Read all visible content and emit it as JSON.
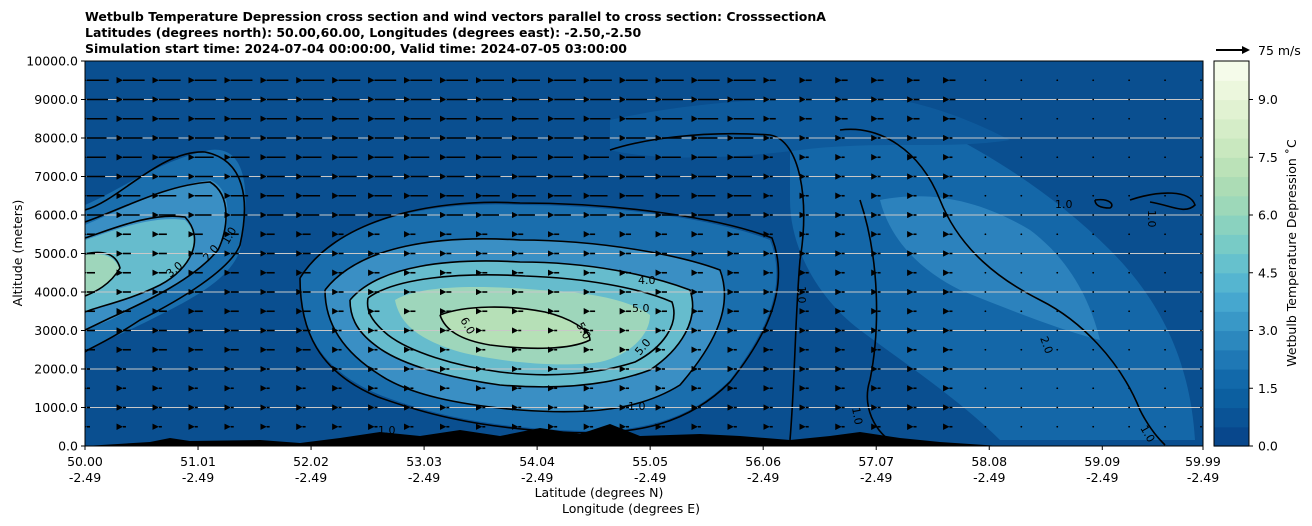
{
  "chart_data": {
    "type": "contour",
    "title_lines": [
      "Wetbulb Temperature Depression cross section and wind vectors parallel to cross section: CrosssectionA",
      "Latitudes (degrees north): 50.00,60.00, Longitudes (degrees east): -2.50,-2.50",
      "Simulation start time: 2024-07-04 00:00:00, Valid time: 2024-07-05 03:00:00"
    ],
    "ylabel": "Altitude (meters)",
    "xlabel_line1": "Latitude (degrees N)",
    "xlabel_line2": "Longitude (degrees E)",
    "ylim": [
      0,
      10000
    ],
    "y_ticks": [
      "0.0",
      "1000.0",
      "2000.0",
      "3000.0",
      "4000.0",
      "5000.0",
      "6000.0",
      "7000.0",
      "8000.0",
      "9000.0",
      "10000.0"
    ],
    "y_tick_values": [
      0,
      1000,
      2000,
      3000,
      4000,
      5000,
      6000,
      7000,
      8000,
      9000,
      10000
    ],
    "xlim": [
      50.0,
      59.99
    ],
    "x_ticks": [
      {
        "lat": "50.00",
        "lon": "-2.49",
        "value": 50.0
      },
      {
        "lat": "51.01",
        "lon": "-2.49",
        "value": 51.01
      },
      {
        "lat": "52.02",
        "lon": "-2.49",
        "value": 52.02
      },
      {
        "lat": "53.03",
        "lon": "-2.49",
        "value": 53.03
      },
      {
        "lat": "54.04",
        "lon": "-2.49",
        "value": 54.04
      },
      {
        "lat": "55.05",
        "lon": "-2.49",
        "value": 55.05
      },
      {
        "lat": "56.06",
        "lon": "-2.49",
        "value": 56.06
      },
      {
        "lat": "57.07",
        "lon": "-2.49",
        "value": 57.07
      },
      {
        "lat": "58.08",
        "lon": "-2.49",
        "value": 58.08
      },
      {
        "lat": "59.09",
        "lon": "-2.49",
        "value": 59.09
      },
      {
        "lat": "59.99",
        "lon": "-2.49",
        "value": 59.99
      }
    ],
    "colorbar": {
      "label": "Wetbulb Temperature Depression ˚C",
      "min": 0.0,
      "max": 10.0,
      "tick_labels": [
        "0.0",
        "1.5",
        "3.0",
        "4.5",
        "6.0",
        "7.5",
        "9.0"
      ],
      "tick_values": [
        0.0,
        1.5,
        3.0,
        4.5,
        6.0,
        7.5,
        9.0
      ],
      "colors": [
        "#08478c",
        "#0a5396",
        "#0c5fa0",
        "#1269aa",
        "#1f78b5",
        "#2c88be",
        "#3998c7",
        "#46a7cf",
        "#55b5d0",
        "#66c1cd",
        "#78cbc6",
        "#8ad2bf",
        "#9dd8b9",
        "#acdcb5",
        "#bbe2b8",
        "#c9e8bf",
        "#d5edc8",
        "#e1f2d2",
        "#ecf7dd",
        "#f5fbea"
      ]
    },
    "vector_key": {
      "label": "75 m/s",
      "speed": 75
    },
    "contour_labels": [
      "1.0",
      "2.0",
      "3.0",
      "4.0",
      "5.0",
      "6.0"
    ],
    "grid": "horizontal"
  }
}
